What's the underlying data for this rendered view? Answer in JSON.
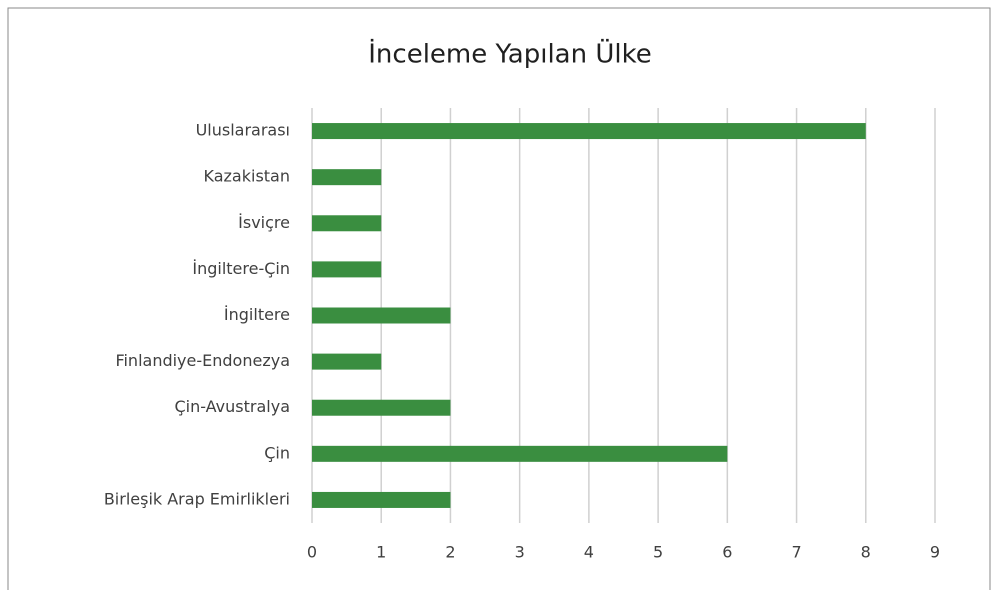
{
  "chart_data": {
    "type": "bar",
    "orientation": "horizontal",
    "title": "İnceleme Yapılan Ülke",
    "categories": [
      "Uluslararası",
      "Kazakistan",
      "İsviçre",
      "İngiltere-Çin",
      "İngiltere",
      "Finlandiye-Endonezya",
      "Çin-Avustralya",
      "Çin",
      "Birleşik Arap Emirlikleri"
    ],
    "values": [
      8,
      1,
      1,
      1,
      2,
      1,
      2,
      6,
      2
    ],
    "color": "#3a8e40",
    "xlim": [
      0,
      9
    ],
    "xticks": [
      0,
      1,
      2,
      3,
      4,
      5,
      6,
      7,
      8,
      9
    ],
    "grid": true
  }
}
